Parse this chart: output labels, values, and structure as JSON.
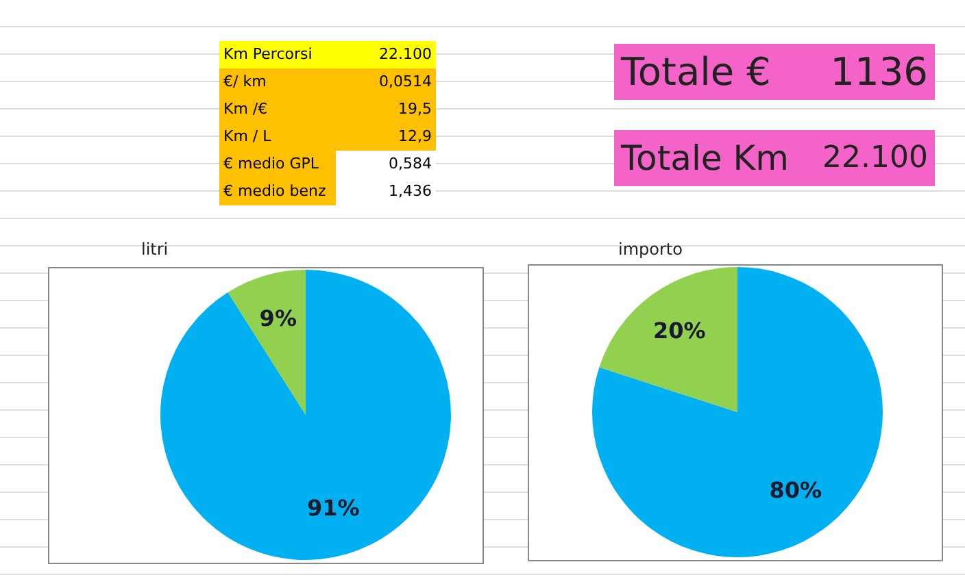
{
  "chart_data": [
    {
      "type": "other",
      "annotations": [
        "Km Percorsi",
        "22.100",
        "€/ km",
        "0,0514",
        "Km /€",
        "19,5",
        "Km / L",
        "12,9",
        "€ medio GPL",
        "0,584",
        "€ medio benz",
        "1,436"
      ]
    },
    {
      "type": "other",
      "annotations": [
        "Totale €",
        "1136",
        "Totale Km",
        "22.100"
      ]
    },
    {
      "type": "pie",
      "title": "litri",
      "categories": [
        null,
        null
      ],
      "values": [
        91,
        9
      ],
      "colors": [
        "#00b0f0",
        "#92d050"
      ],
      "value_labels": [
        "91%",
        "9%"
      ]
    },
    {
      "type": "pie",
      "title": "importo",
      "categories": [
        null,
        null
      ],
      "values": [
        80,
        20
      ],
      "colors": [
        "#00b0f0",
        "#92d050"
      ],
      "value_labels": [
        "80%",
        "20%"
      ]
    }
  ]
}
